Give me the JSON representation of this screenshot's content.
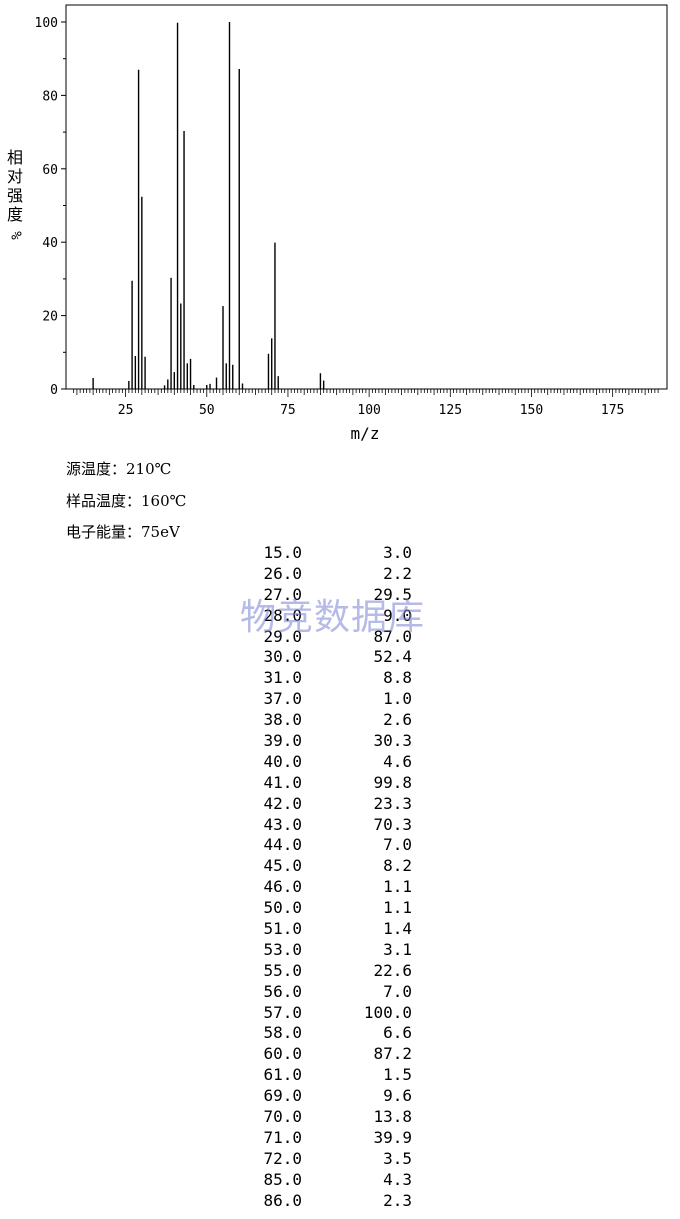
{
  "chart_data": {
    "type": "bar",
    "xlabel": "m/z",
    "ylabel_chars": [
      "相",
      "对",
      "强",
      "度"
    ],
    "ylabel_unit": "%",
    "xlim": [
      8,
      190
    ],
    "ylim": [
      0,
      100
    ],
    "x_ticks": [
      25,
      50,
      75,
      100,
      125,
      150,
      175
    ],
    "y_ticks": [
      0,
      20,
      40,
      60,
      80,
      100
    ],
    "peaks": [
      {
        "mz": 15.0,
        "intensity": 3.0
      },
      {
        "mz": 26.0,
        "intensity": 2.2
      },
      {
        "mz": 27.0,
        "intensity": 29.5
      },
      {
        "mz": 28.0,
        "intensity": 9.0
      },
      {
        "mz": 29.0,
        "intensity": 87.0
      },
      {
        "mz": 30.0,
        "intensity": 52.4
      },
      {
        "mz": 31.0,
        "intensity": 8.8
      },
      {
        "mz": 37.0,
        "intensity": 1.0
      },
      {
        "mz": 38.0,
        "intensity": 2.6
      },
      {
        "mz": 39.0,
        "intensity": 30.3
      },
      {
        "mz": 40.0,
        "intensity": 4.6
      },
      {
        "mz": 41.0,
        "intensity": 99.8
      },
      {
        "mz": 42.0,
        "intensity": 23.3
      },
      {
        "mz": 43.0,
        "intensity": 70.3
      },
      {
        "mz": 44.0,
        "intensity": 7.0
      },
      {
        "mz": 45.0,
        "intensity": 8.2
      },
      {
        "mz": 46.0,
        "intensity": 1.1
      },
      {
        "mz": 50.0,
        "intensity": 1.1
      },
      {
        "mz": 51.0,
        "intensity": 1.4
      },
      {
        "mz": 53.0,
        "intensity": 3.1
      },
      {
        "mz": 55.0,
        "intensity": 22.6
      },
      {
        "mz": 56.0,
        "intensity": 7.0
      },
      {
        "mz": 57.0,
        "intensity": 100.0
      },
      {
        "mz": 58.0,
        "intensity": 6.6
      },
      {
        "mz": 60.0,
        "intensity": 87.2
      },
      {
        "mz": 61.0,
        "intensity": 1.5
      },
      {
        "mz": 69.0,
        "intensity": 9.6
      },
      {
        "mz": 70.0,
        "intensity": 13.8
      },
      {
        "mz": 71.0,
        "intensity": 39.9
      },
      {
        "mz": 72.0,
        "intensity": 3.5
      },
      {
        "mz": 85.0,
        "intensity": 4.3
      },
      {
        "mz": 86.0,
        "intensity": 2.3
      }
    ]
  },
  "conditions": {
    "source_temp": "源温度：210℃",
    "sample_temp": "样品温度：160℃",
    "electron_energy": "电子能量：75eV"
  },
  "table_rows": [
    [
      "15.0",
      "3.0"
    ],
    [
      "26.0",
      "2.2"
    ],
    [
      "27.0",
      "29.5"
    ],
    [
      "28.0",
      "9.0"
    ],
    [
      "29.0",
      "87.0"
    ],
    [
      "30.0",
      "52.4"
    ],
    [
      "31.0",
      "8.8"
    ],
    [
      "37.0",
      "1.0"
    ],
    [
      "38.0",
      "2.6"
    ],
    [
      "39.0",
      "30.3"
    ],
    [
      "40.0",
      "4.6"
    ],
    [
      "41.0",
      "99.8"
    ],
    [
      "42.0",
      "23.3"
    ],
    [
      "43.0",
      "70.3"
    ],
    [
      "44.0",
      "7.0"
    ],
    [
      "45.0",
      "8.2"
    ],
    [
      "46.0",
      "1.1"
    ],
    [
      "50.0",
      "1.1"
    ],
    [
      "51.0",
      "1.4"
    ],
    [
      "53.0",
      "3.1"
    ],
    [
      "55.0",
      "22.6"
    ],
    [
      "56.0",
      "7.0"
    ],
    [
      "57.0",
      "100.0"
    ],
    [
      "58.0",
      "6.6"
    ],
    [
      "60.0",
      "87.2"
    ],
    [
      "61.0",
      "1.5"
    ],
    [
      "69.0",
      "9.6"
    ],
    [
      "70.0",
      "13.8"
    ],
    [
      "71.0",
      "39.9"
    ],
    [
      "72.0",
      "3.5"
    ],
    [
      "85.0",
      "4.3"
    ],
    [
      "86.0",
      "2.3"
    ]
  ],
  "watermark": "物竞数据库",
  "colors": {
    "line": "#000000",
    "watermark": "#7a83d0"
  }
}
